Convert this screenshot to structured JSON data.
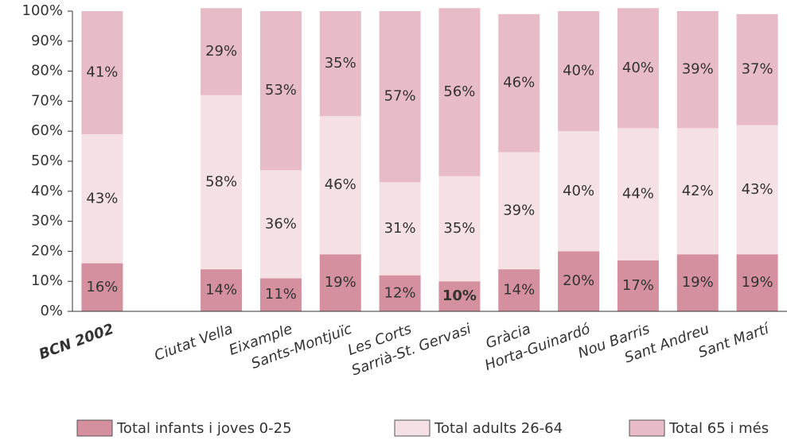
{
  "chart_data": {
    "type": "stacked-bar",
    "categories": [
      "BCN 2002",
      null,
      "Ciutat Vella",
      "Eixample",
      "Sants-Montjuïc",
      "Les Corts",
      "Sarrià-St. Gervasi",
      "Gràcia",
      "Horta-Guinardó",
      "Nou Barris",
      "Sant Andreu",
      "Sant Martí"
    ],
    "series": [
      {
        "name": "Total infants i joves 0-25",
        "color": "#d4909f",
        "values": [
          16,
          null,
          14,
          11,
          19,
          12,
          10,
          14,
          20,
          17,
          19,
          19
        ],
        "value_labels": [
          "16%",
          null,
          "14%",
          "11%",
          "19%",
          "12%",
          "10%",
          "14%",
          "20%",
          "17%",
          "19%",
          "19%"
        ]
      },
      {
        "name": "Total adults 26-64",
        "color": "#f5e1e4",
        "values": [
          43,
          null,
          58,
          36,
          46,
          31,
          35,
          39,
          40,
          44,
          42,
          43
        ],
        "value_labels": [
          "43%",
          null,
          "58%",
          "36%",
          "46%",
          "31%",
          "35%",
          "39%",
          "40%",
          "44%",
          "42%",
          "43%"
        ]
      },
      {
        "name": "Total 65 i més",
        "color": "#e8bcc6",
        "values": [
          41,
          null,
          29,
          53,
          35,
          57,
          56,
          46,
          40,
          40,
          39,
          37
        ],
        "value_labels": [
          "41%",
          null,
          "29%",
          "53%",
          "35%",
          "57%",
          "56%",
          "46%",
          "40%",
          "40%",
          "39%",
          "37%"
        ]
      }
    ],
    "ylim": [
      0,
      100
    ],
    "yticks": [
      {
        "value": 0,
        "label": "0%"
      },
      {
        "value": 10,
        "label": "10%"
      },
      {
        "value": 20,
        "label": "20%"
      },
      {
        "value": 30,
        "label": "30%"
      },
      {
        "value": 40,
        "label": "40%"
      },
      {
        "value": 50,
        "label": "50%"
      },
      {
        "value": 60,
        "label": "60%"
      },
      {
        "value": 70,
        "label": "70%"
      },
      {
        "value": 80,
        "label": "80%"
      },
      {
        "value": 90,
        "label": "90%"
      },
      {
        "value": 100,
        "label": "100%"
      }
    ],
    "legend": "bottom"
  }
}
